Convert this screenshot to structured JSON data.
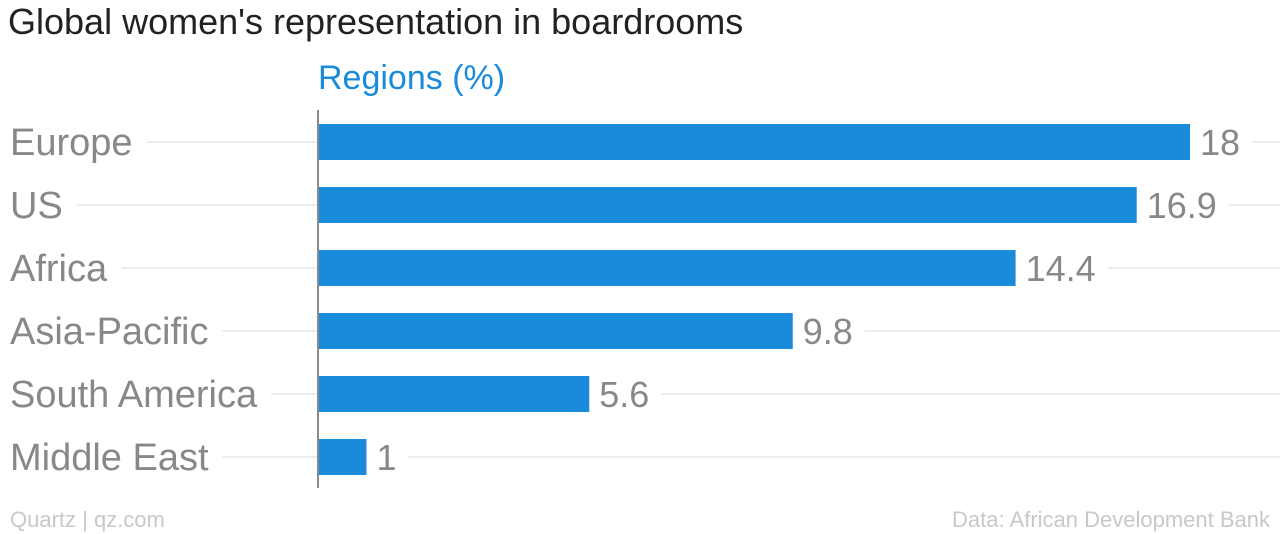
{
  "title": "Global women's representation in boardrooms",
  "colors": {
    "bar": "#1a8bdb",
    "series_label": "#1a8bdb",
    "category_text": "#888888",
    "footer_text": "#c8c8c8",
    "gridline": "#ececec",
    "title_text": "#222222"
  },
  "footer": {
    "left": "Quartz | qz.com",
    "right": "Data: African Development Bank"
  },
  "chart_data": {
    "type": "bar",
    "orientation": "horizontal",
    "title": "Global women's representation in boardrooms",
    "series": [
      {
        "name": "Regions (%)",
        "values": [
          18,
          16.9,
          14.4,
          9.8,
          5.6,
          1
        ]
      }
    ],
    "categories": [
      "Europe",
      "US",
      "Africa",
      "Asia-Pacific",
      "South America",
      "Middle East"
    ],
    "value_labels": [
      "18",
      "16.9",
      "14.4",
      "9.8",
      "5.6",
      "1"
    ],
    "xlim": [
      0,
      18
    ],
    "grid": true,
    "legend": "top"
  }
}
